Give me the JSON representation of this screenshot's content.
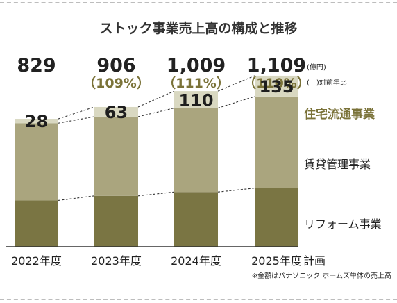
{
  "chart_data": {
    "type": "bar",
    "stacked": true,
    "title": "ストック事業売上高の構成と推移",
    "categories": [
      "2022年度",
      "2023年度",
      "2024年度",
      "2025年度"
    ],
    "category_suffix": [
      "",
      "",
      "",
      "計画"
    ],
    "totals": [
      829,
      906,
      1009,
      1109
    ],
    "total_labels": [
      "829",
      "906",
      "1,009",
      "1,109"
    ],
    "yoy_labels": [
      "",
      "（109%）",
      "（111%）",
      "（110%）"
    ],
    "unit_label": "(億円)",
    "yoy_note": "(　)対前年比",
    "series": [
      {
        "name": "リフォーム事業",
        "color": "#7a7543",
        "values": [
          300,
          330,
          355,
          380
        ]
      },
      {
        "name": "賃貸管理事業",
        "color": "#aaa57e",
        "values": [
          501,
          513,
          544,
          594
        ]
      },
      {
        "name": "住宅流通事業",
        "color": "#d9d8c1",
        "values": [
          28,
          63,
          110,
          135
        ]
      }
    ],
    "series_labels": [
      "28",
      "63",
      "110",
      "135"
    ],
    "highlight_series_color": "#7a7238",
    "footnote": "※金額はパナソニック ホームズ単体の売上高"
  }
}
